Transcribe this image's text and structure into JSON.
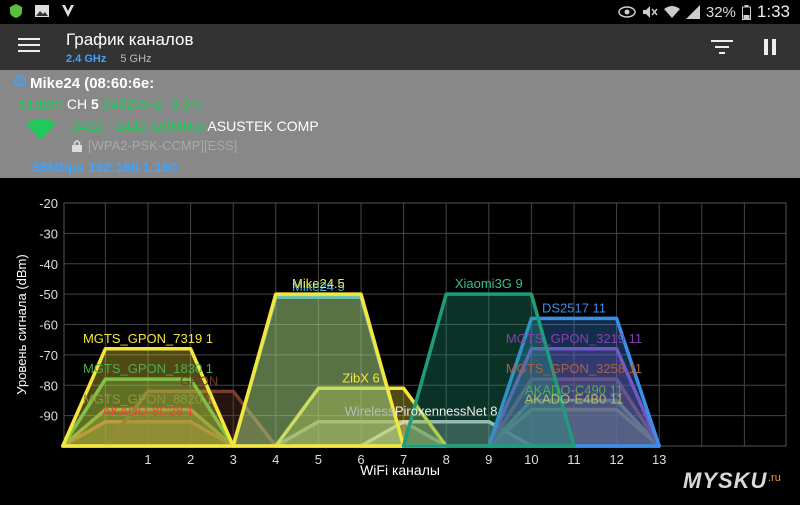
{
  "statusbar": {
    "battery": "32%",
    "time": "1:33",
    "left_icons": [
      "shield-app-icon",
      "image-icon",
      "app-icon"
    ],
    "right_icons": [
      "eye-icon",
      "mute-icon",
      "wifi-status-icon",
      "signal-icon",
      "battery-icon"
    ]
  },
  "toolbar": {
    "title": "График каналов",
    "tabs": [
      {
        "label": "2.4 GHz",
        "active": true
      },
      {
        "label": "5 GHz",
        "active": false
      }
    ]
  },
  "connection": {
    "ssid": "Mike24 (08:60:6e:",
    "signal": "-51dBm",
    "ch_label": "CH",
    "channel": "5",
    "freq": "2432MHz",
    "distance": "3.5m",
    "range": "2422 - 2442 (20MHz)",
    "vendor": "ASUSTEK COMP",
    "security": "[WPA2-PSK-CCMP][ESS]",
    "rate_ip": "58Mbps 192.168.1.160"
  },
  "chart_data": {
    "type": "area",
    "ylabel": "Уровень сигнала (dBm)",
    "xlabel": "WiFi каналы",
    "ylim": [
      -100,
      -20
    ],
    "xlim": [
      -1,
      15
    ],
    "yticks": [
      -20,
      -30,
      -40,
      -50,
      -60,
      -70,
      -80,
      -90
    ],
    "xticks": [
      1,
      2,
      3,
      4,
      5,
      6,
      7,
      8,
      9,
      10,
      11,
      12,
      13
    ],
    "grid": true,
    "networks": [
      {
        "name": "MGTS_GPON_7319",
        "channel": 1,
        "signal": -68,
        "color": "#f5e63c",
        "label_color": "#f5e63c"
      },
      {
        "name": "MGTS_GPON_1830",
        "channel": 1,
        "signal": -78,
        "color": "#4cae52",
        "label_color": "#4cae52"
      },
      {
        "name": "MGTS_GPON_8820",
        "channel": 1,
        "signal": -88,
        "color": "#8e9a39",
        "label_color": "#8e9a39"
      },
      {
        "name": "AKADO-8C28",
        "channel": 1,
        "signal": -92,
        "color": "#e8473a",
        "label_color": "#e8473a"
      },
      {
        "name": "GPON",
        "channel": 2,
        "signal": -82,
        "color": "#7a3b30",
        "label_color": "#7a3b30"
      },
      {
        "name": "Mike24",
        "channel": 5,
        "signal": -51,
        "color": "#2fb6e8",
        "label_color": "#2fb6e8"
      },
      {
        "name": "Mike24.5",
        "channel": 5,
        "signal": -50,
        "color": "#f5e63c",
        "label_color": "#f5e63c"
      },
      {
        "name": "ZibX",
        "channel": 6,
        "signal": -81,
        "color": "#f5e63c",
        "label_color": "#f5e63c"
      },
      {
        "name": "Wireless",
        "channel": 6,
        "signal": -92,
        "color": "#888888",
        "label_color": "#bbbbbb"
      },
      {
        "name": "PiroxennessNet",
        "channel": 8,
        "signal": -92,
        "color": "#cccccc",
        "label_color": "#eeeeee"
      },
      {
        "name": "Xiaomi3G",
        "channel": 9,
        "signal": -50,
        "color": "#1f9c7a",
        "label_color": "#33c08f"
      },
      {
        "name": "DS2517",
        "channel": 11,
        "signal": -58,
        "color": "#3a8ee8",
        "label_color": "#3a8ee8"
      },
      {
        "name": "MGTS_GPON_3219",
        "channel": 11,
        "signal": -68,
        "color": "#8c3db5",
        "label_color": "#8c3db5"
      },
      {
        "name": "MGTS_GPON_3258",
        "channel": 11,
        "signal": -78,
        "color": "#7a3b30",
        "label_color": "#b0603e"
      },
      {
        "name": "AKADO-C490",
        "channel": 11,
        "signal": -85,
        "color": "#4cae52",
        "label_color": "#4cae52"
      },
      {
        "name": "AKADO-E4B0",
        "channel": 11,
        "signal": -88,
        "color": "#8e9a39",
        "label_color": "#b8b86a"
      }
    ]
  },
  "labels": {
    "mgts7319": "MGTS_GPON_7319 1",
    "mgts1830": "MGTS_GPON_1830 1",
    "mgts8820": "MGTS_GPON_8820 1",
    "akado8c28": "AKADO-8C28 1",
    "gpon": "GPON",
    "mike24": "Mike24 5",
    "mike245": "Mike24.5",
    "zibx": "ZibX 6",
    "wireless": "Wireless",
    "pirox": "PiroxennessNet 8",
    "xiaomi": "Xiaomi3G 9",
    "ds2517": "DS2517 11",
    "mgts3219": "MGTS_GPON_3219 11",
    "mgts3258": "MGTS_GPON_3258 11",
    "akadoc490": "AKADO-C490 11",
    "akadoe4b0": "AKADO-E4B0 11"
  },
  "watermark": {
    "text": "MYSKU",
    "suffix": ".ru"
  }
}
